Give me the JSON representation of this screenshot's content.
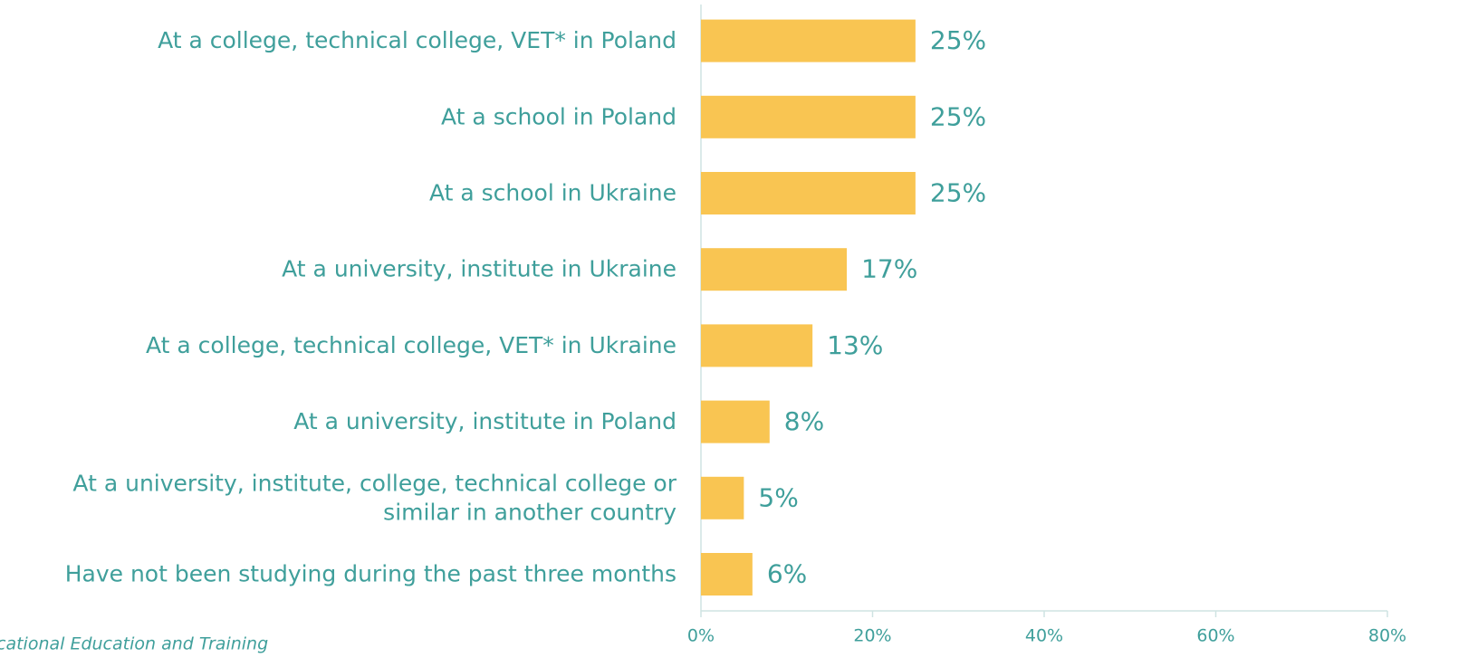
{
  "chart_data": {
    "type": "bar",
    "orientation": "horizontal",
    "categories": [
      "At a college, technical college, VET* in Poland",
      "At a school in Poland",
      "At a school in Ukraine",
      "At a university, institute in Ukraine",
      "At a college, technical college, VET* in Ukraine",
      "At a university, institute in Poland",
      "At a university, institute, college, technical college or\nsimilar in another country",
      "Have not been studying during the past three months"
    ],
    "values": [
      25,
      25,
      25,
      17,
      13,
      8,
      5,
      6
    ],
    "value_labels": [
      "25%",
      "25%",
      "25%",
      "17%",
      "13%",
      "8%",
      "5%",
      "6%"
    ],
    "color": "#f9c552",
    "xlim": [
      0,
      80
    ],
    "xticks": [
      {
        "value": 0,
        "label": "0%"
      },
      {
        "value": 20,
        "label": "20%"
      },
      {
        "value": 40,
        "label": "40%"
      },
      {
        "value": 60,
        "label": "60%"
      },
      {
        "value": 80,
        "label": "80%"
      }
    ],
    "grid": false,
    "footnote": "cational Education and Training"
  }
}
